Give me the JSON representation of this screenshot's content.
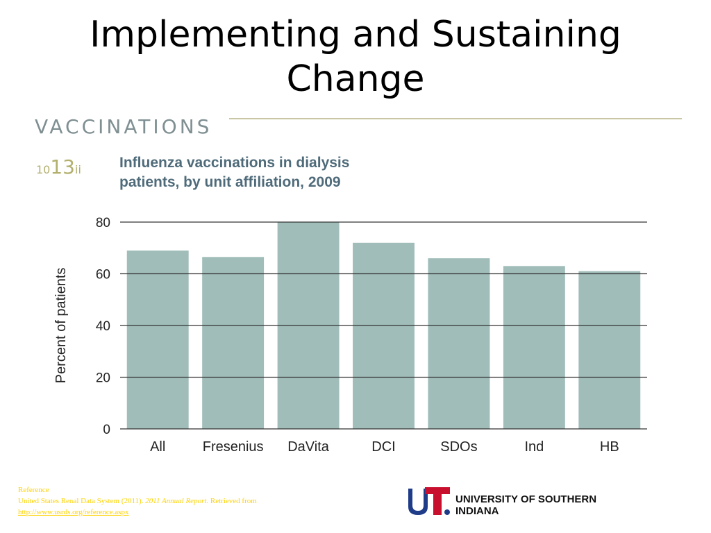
{
  "slide": {
    "title_line1": "Implementing and Sustaining",
    "title_line2": "Change"
  },
  "figure": {
    "section_header": "VACCINATIONS",
    "figure_number_main": "13",
    "figure_number_sub": "ii",
    "figure_number_prefix": "10",
    "chart_title_line1": "Influenza vaccinations in dialysis",
    "chart_title_line2": "patients, by unit affiliation, 2009"
  },
  "chart_data": {
    "type": "bar",
    "title": "Influenza vaccinations in dialysis patients, by unit affiliation, 2009",
    "categories": [
      "All",
      "Fresenius",
      "DaVita",
      "DCI",
      "SDOs",
      "Ind",
      "HB"
    ],
    "values": [
      69,
      66.5,
      80,
      72,
      66,
      63,
      61
    ],
    "xlabel": "",
    "ylabel": "Percent of patients",
    "ylim": [
      0,
      80
    ],
    "yticks": [
      0,
      20,
      40,
      60,
      80
    ],
    "grid": true,
    "bar_color": "#a0bdb9"
  },
  "reference": {
    "heading": "Reference",
    "citation_prefix": "United States Renal Data System (2011). ",
    "citation_title": "2011 Annual Report.",
    "citation_suffix": " Retrieved from",
    "url": "http://www.usrds.org/reference.aspx"
  },
  "branding": {
    "logo_mark": "USI.",
    "logo_text": "UNIVERSITY OF SOUTHERN INDIANA",
    "logo_red": "#c8102e",
    "logo_blue": "#1f3c88"
  }
}
